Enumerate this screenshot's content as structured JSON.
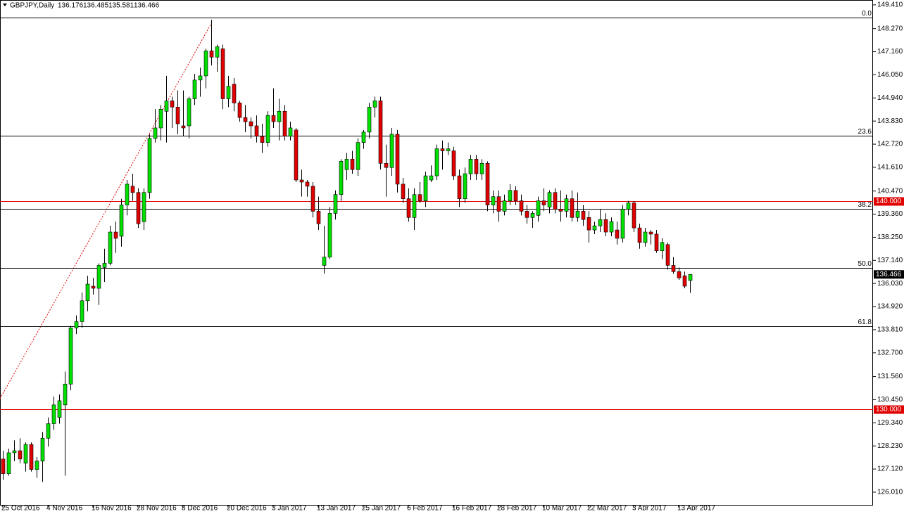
{
  "chart_data": {
    "type": "candlestick",
    "title": "GBPJPY,Daily",
    "categories": [
      "25 Oct 2016",
      null,
      null,
      null,
      null,
      null,
      null,
      null,
      "4 Nov 2016",
      null,
      null,
      null,
      null,
      null,
      null,
      null,
      "16 Nov 2016",
      null,
      null,
      null,
      null,
      null,
      null,
      null,
      "28 Nov 2016",
      null,
      null,
      null,
      null,
      null,
      null,
      null,
      "8 Dec 2016",
      null,
      null,
      null,
      null,
      null,
      null,
      null,
      "20 Dec 2016",
      null,
      null,
      null,
      null,
      null,
      null,
      null,
      "3 Jan 2017",
      null,
      null,
      null,
      null,
      null,
      null,
      null,
      "13 Jan 2017",
      null,
      null,
      null,
      null,
      null,
      null,
      null,
      "25 Jan 2017",
      null,
      null,
      null,
      null,
      null,
      null,
      null,
      "6 Feb 2017",
      null,
      null,
      null,
      null,
      null,
      null,
      null,
      "16 Feb 2017",
      null,
      null,
      null,
      null,
      null,
      null,
      null,
      "28 Feb 2017",
      null,
      null,
      null,
      null,
      null,
      null,
      null,
      "10 Mar 2017",
      null,
      null,
      null,
      null,
      null,
      null,
      null,
      "22 Mar 2017",
      null,
      null,
      null,
      null,
      null,
      null,
      null,
      "3 Apr 2017",
      null,
      null,
      null,
      null,
      null,
      null,
      null,
      "13 Apr 2017",
      null,
      null
    ],
    "open": [
      127.6,
      126.9,
      127.9,
      128.0,
      127.4,
      128.3,
      127.1,
      127.5,
      128.6,
      129.3,
      129.6,
      130.2,
      131.2,
      133.9,
      134.2,
      135.2,
      135.9,
      135.8,
      136.8,
      137.0,
      138.5,
      138.3,
      139.8,
      140.7,
      140.4,
      139.0,
      140.4,
      143.0,
      143.5,
      144.3,
      144.8,
      144.5,
      143.6,
      143.6,
      144.9,
      145.8,
      146.0,
      147.2,
      146.9,
      147.3,
      144.9,
      145.6,
      144.7,
      144.0,
      143.8,
      143.6,
      143.1,
      142.8,
      144.1,
      143.8,
      144.3,
      143.1,
      143.4,
      141.0,
      140.9,
      140.7,
      139.5,
      136.9,
      137.3,
      139.4,
      140.3,
      141.5,
      142.0,
      141.5,
      142.8,
      143.3,
      144.5,
      144.8,
      141.8,
      141.6,
      143.2,
      140.8,
      140.1,
      139.2,
      140.3,
      140.0,
      141.0,
      141.2,
      142.5,
      142.4,
      142.4,
      141.2,
      140.1,
      141.3,
      142.0,
      141.3,
      141.8,
      139.8,
      140.2,
      139.5,
      140.0,
      140.5,
      140.0,
      139.5,
      139.2,
      139.3,
      140.0,
      139.7,
      140.4,
      139.6,
      139.5,
      140.1,
      139.2,
      139.5,
      139.2,
      138.6,
      138.8,
      139.1,
      138.5,
      138.6,
      138.2,
      139.6,
      139.9,
      138.7,
      138.0,
      138.5,
      138.4,
      137.6,
      137.9,
      136.9,
      136.6,
      136.4,
      136.176
    ],
    "high": [
      128.0,
      128.1,
      128.5,
      128.6,
      128.4,
      128.4,
      127.7,
      128.9,
      129.6,
      130.6,
      130.7,
      131.8,
      134.0,
      134.5,
      135.6,
      136.4,
      136.3,
      137.0,
      137.7,
      138.8,
      139.0,
      140.1,
      141.0,
      141.3,
      140.6,
      140.6,
      143.2,
      144.4,
      144.6,
      146.0,
      145.0,
      145.3,
      145.3,
      145.0,
      146.1,
      146.4,
      147.3,
      148.7,
      147.5,
      147.5,
      146.0,
      145.9,
      144.8,
      144.6,
      144.0,
      144.1,
      143.7,
      144.3,
      145.4,
      144.9,
      144.6,
      143.8,
      143.5,
      141.5,
      141.0,
      140.9,
      140.2,
      138.8,
      139.7,
      140.5,
      142.0,
      142.3,
      142.4,
      143.0,
      143.4,
      144.7,
      145.0,
      145.0,
      142.7,
      143.5,
      143.4,
      141.1,
      140.6,
      140.6,
      140.9,
      141.4,
      141.7,
      142.7,
      142.9,
      142.8,
      142.6,
      141.5,
      141.6,
      142.2,
      142.2,
      142.0,
      141.9,
      140.5,
      140.5,
      140.3,
      140.8,
      140.7,
      140.3,
      139.8,
      139.5,
      140.2,
      140.6,
      140.5,
      140.6,
      140.5,
      140.3,
      140.5,
      140.4,
      139.8,
      139.5,
      139.0,
      139.6,
      139.4,
      139.2,
      139.0,
      139.8,
      140.0,
      140.0,
      138.9,
      138.7,
      138.6,
      138.6,
      138.2,
      138.0,
      137.3,
      136.8,
      136.6,
      136.485
    ],
    "low": [
      126.6,
      126.8,
      127.5,
      127.4,
      127.0,
      127.0,
      126.7,
      126.5,
      128.2,
      129.0,
      129.3,
      126.8,
      130.9,
      133.6,
      133.9,
      134.7,
      135.5,
      135.0,
      136.1,
      136.9,
      137.5,
      137.8,
      139.3,
      140.0,
      138.7,
      138.6,
      140.1,
      142.8,
      142.9,
      142.8,
      143.5,
      143.2,
      143.1,
      143.0,
      144.6,
      145.0,
      145.4,
      146.5,
      146.2,
      144.4,
      144.5,
      144.3,
      143.8,
      143.3,
      143.0,
      142.8,
      142.3,
      142.6,
      143.5,
      142.9,
      142.9,
      142.9,
      140.9,
      140.2,
      140.2,
      139.2,
      138.6,
      136.5,
      137.2,
      139.1,
      140.0,
      141.0,
      141.3,
      141.2,
      142.5,
      143.0,
      144.0,
      141.5,
      140.2,
      141.2,
      140.4,
      139.9,
      139.0,
      138.6,
      139.9,
      139.7,
      140.9,
      141.0,
      141.5,
      142.2,
      141.0,
      139.7,
      139.9,
      141.0,
      141.0,
      141.0,
      139.5,
      139.4,
      139.0,
      139.3,
      139.8,
      139.8,
      139.3,
      138.9,
      138.7,
      139.0,
      139.5,
      139.4,
      139.4,
      139.0,
      139.2,
      139.0,
      139.0,
      138.8,
      138.0,
      138.4,
      138.5,
      138.3,
      138.3,
      137.9,
      138.0,
      139.3,
      138.5,
      137.7,
      137.8,
      137.9,
      137.5,
      137.2,
      136.7,
      136.5,
      136.2,
      135.8,
      135.581
    ],
    "close": [
      126.9,
      127.9,
      128.0,
      127.6,
      128.3,
      127.1,
      127.5,
      128.6,
      129.3,
      130.2,
      130.4,
      131.2,
      133.9,
      134.2,
      135.2,
      136.0,
      135.8,
      136.9,
      137.0,
      138.5,
      138.2,
      139.8,
      140.8,
      140.4,
      138.9,
      140.4,
      143.0,
      143.5,
      144.4,
      144.8,
      144.5,
      143.7,
      143.5,
      144.9,
      145.8,
      146.0,
      147.2,
      146.9,
      147.4,
      144.9,
      145.5,
      144.7,
      144.0,
      143.8,
      143.6,
      143.1,
      142.8,
      144.1,
      143.8,
      144.3,
      143.1,
      143.5,
      141.0,
      140.9,
      140.7,
      139.5,
      138.9,
      137.3,
      139.4,
      140.3,
      141.9,
      142.0,
      141.5,
      142.8,
      143.3,
      144.5,
      144.8,
      141.8,
      141.6,
      143.2,
      140.8,
      140.1,
      139.2,
      140.3,
      140.0,
      141.2,
      141.2,
      142.5,
      142.4,
      142.5,
      141.2,
      140.1,
      141.3,
      142.0,
      141.3,
      141.8,
      139.8,
      140.2,
      139.5,
      140.0,
      140.5,
      140.0,
      139.5,
      139.2,
      139.4,
      140.0,
      139.8,
      140.4,
      139.6,
      139.5,
      140.1,
      139.2,
      139.5,
      139.1,
      138.6,
      138.8,
      139.1,
      138.5,
      139.0,
      138.2,
      139.6,
      139.9,
      138.7,
      138.0,
      138.5,
      138.4,
      137.6,
      138.0,
      136.9,
      136.6,
      136.3,
      135.9,
      136.466
    ],
    "up_color": "#00e000",
    "down_color": "#e00000",
    "ylim": [
      125.4,
      149.61
    ],
    "yticks": [
      {
        "value": 149.41,
        "label": "149.410"
      },
      {
        "value": 148.27,
        "label": "148.270"
      },
      {
        "value": 147.16,
        "label": "147.160"
      },
      {
        "value": 146.05,
        "label": "146.050"
      },
      {
        "value": 144.94,
        "label": "144.940"
      },
      {
        "value": 143.83,
        "label": "143.830"
      },
      {
        "value": 142.72,
        "label": "142.720"
      },
      {
        "value": 141.61,
        "label": "141.610"
      },
      {
        "value": 140.47,
        "label": "140.470"
      },
      {
        "value": 139.36,
        "label": "139.360"
      },
      {
        "value": 138.25,
        "label": "138.250"
      },
      {
        "value": 137.14,
        "label": "137.140"
      },
      {
        "value": 136.03,
        "label": "136.030"
      },
      {
        "value": 134.92,
        "label": "134.920"
      },
      {
        "value": 133.81,
        "label": "133.810"
      },
      {
        "value": 132.7,
        "label": "132.700"
      },
      {
        "value": 131.56,
        "label": "131.560"
      },
      {
        "value": 130.45,
        "label": "130.450"
      },
      {
        "value": 129.34,
        "label": "129.340"
      },
      {
        "value": 128.23,
        "label": "128.230"
      },
      {
        "value": 127.12,
        "label": "127.120"
      },
      {
        "value": 126.01,
        "label": "126.010"
      }
    ],
    "fib_levels": [
      {
        "label": "0.0",
        "value": 148.8
      },
      {
        "label": "23.6",
        "value": 143.13
      },
      {
        "label": "38.2",
        "value": 139.62
      },
      {
        "label": "50.0",
        "value": 136.78
      },
      {
        "label": "61.8",
        "value": 133.97
      }
    ],
    "price_lines": [
      {
        "value": 140,
        "label": "140.000",
        "color": "#e00000"
      },
      {
        "value": 130,
        "label": "130.000",
        "color": "#e00000"
      }
    ]
  }
}
